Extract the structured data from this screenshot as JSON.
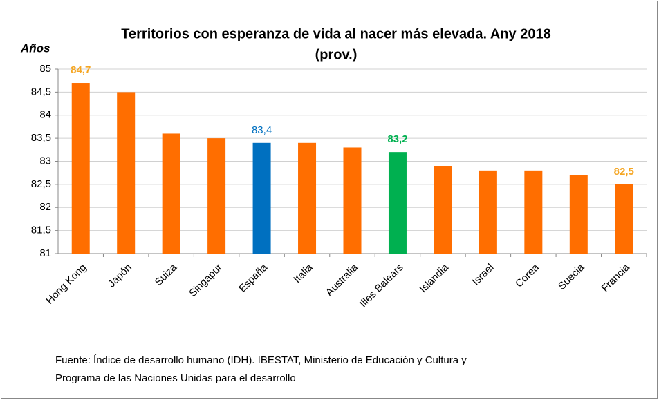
{
  "chart_data": {
    "type": "bar",
    "title_lines": [
      "Territorios con esperanza de vida al nacer más elevada. Any 2018",
      "(prov.)"
    ],
    "y_label": "Años",
    "categories": [
      "Hong Kong",
      "Japón",
      "Suiza",
      "Singapur",
      "España",
      "Italia",
      "Australia",
      "Illes Balears",
      "Islandia",
      "Israel",
      "Corea",
      "Suecia",
      "Francia"
    ],
    "values": [
      84.7,
      84.5,
      83.6,
      83.5,
      83.4,
      83.4,
      83.3,
      83.2,
      82.9,
      82.8,
      82.8,
      82.7,
      82.5
    ],
    "value_labels": [
      "84,7",
      null,
      null,
      null,
      "83,4",
      null,
      null,
      "83,2",
      null,
      null,
      null,
      null,
      "82,5"
    ],
    "colors": [
      "#ff6e00",
      "#ff6e00",
      "#ff6e00",
      "#ff6e00",
      "#0070c0",
      "#ff6e00",
      "#ff6e00",
      "#00b050",
      "#ff6e00",
      "#ff6e00",
      "#ff6e00",
      "#ff6e00",
      "#ff6e00"
    ],
    "ylim": [
      81,
      85
    ],
    "yticks": [
      81,
      {
        "value": 81.5,
        "label": "81,5"
      },
      82,
      {
        "value": 82.5,
        "label": "82,5"
      },
      83,
      {
        "value": 83.5,
        "label": "83,5"
      },
      84,
      {
        "value": 84.5,
        "label": "84,5"
      },
      85
    ],
    "grid": true,
    "source_lines": [
      "Fuente: Índice de desarrollo humano (IDH). IBESTAT, Ministerio de Educación y Cultura y",
      "Programa de las Naciones Unidas para el desarrollo"
    ]
  }
}
